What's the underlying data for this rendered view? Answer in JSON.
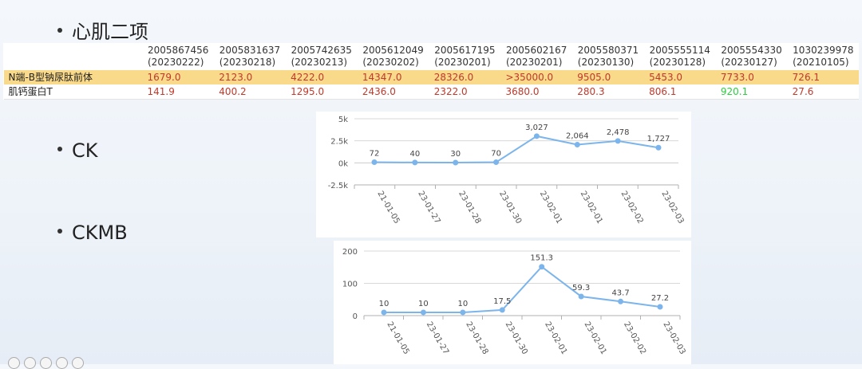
{
  "bullets": {
    "heart": "心肌二项",
    "ck": "CK",
    "ckmb": "CKMB"
  },
  "table": {
    "headers": [
      {
        "id": "2005867456",
        "date": "(20230222)"
      },
      {
        "id": "2005831637",
        "date": "(20230218)"
      },
      {
        "id": "2005742635",
        "date": "(20230213)"
      },
      {
        "id": "2005612049",
        "date": "(20230202)"
      },
      {
        "id": "2005617195",
        "date": "(20230201)"
      },
      {
        "id": "2005602167",
        "date": "(20230201)"
      },
      {
        "id": "2005580371",
        "date": "(20230130)"
      },
      {
        "id": "2005555114",
        "date": "(20230128)"
      },
      {
        "id": "2005554330",
        "date": "(20230127)"
      },
      {
        "id": "1030239978",
        "date": "(20210105)"
      }
    ],
    "rows": [
      {
        "label": "N端-B型钠尿肽前体",
        "values": [
          "1679.0",
          "2123.0",
          "4222.0",
          "14347.0",
          "28326.0",
          ">35000.0",
          "9505.0",
          "5453.0",
          "7733.0",
          "726.1"
        ],
        "colors": [
          "red",
          "red",
          "red",
          "red",
          "red",
          "red",
          "red",
          "red",
          "red",
          "red"
        ]
      },
      {
        "label": "肌钙蛋白T",
        "values": [
          "141.9",
          "400.2",
          "1295.0",
          "2436.0",
          "2322.0",
          "3680.0",
          "280.3",
          "806.1",
          "920.1",
          "27.6"
        ],
        "colors": [
          "red",
          "red",
          "red",
          "red",
          "red",
          "red",
          "red",
          "red",
          "green",
          "red"
        ]
      }
    ],
    "highlight_color": "#f9d98a"
  },
  "chart_data": [
    {
      "type": "line",
      "title": "",
      "categories": [
        "21-01-05",
        "23-01-27",
        "23-01-28",
        "23-01-30",
        "23-02-01",
        "23-02-01",
        "23-02-02",
        "23-02-03"
      ],
      "category_ticks": [
        "21-01-05",
        "23-01-27",
        "23-01-28",
        "23-01-30",
        "23-02-01",
        "23-02-01",
        "23-02-02",
        "23-02-03"
      ],
      "values": [
        72,
        40,
        30,
        70,
        3027,
        2064,
        2478,
        1727
      ],
      "data_labels": [
        "72",
        "40",
        "30",
        "70",
        "3,027",
        "2,064",
        "2,478",
        "1,727"
      ],
      "yticks": [
        5000,
        2500,
        0,
        -2500
      ],
      "ytick_labels": [
        "5k",
        "2.5k",
        "0k",
        "-2.5k"
      ],
      "ylim": [
        -2500,
        5000
      ],
      "grid": true,
      "color": "#7cb5ec"
    },
    {
      "type": "line",
      "title": "",
      "categories": [
        "21-01-05",
        "23-01-27",
        "23-01-28",
        "23-01-30",
        "23-02-01",
        "23-02-01",
        "23-02-02",
        "23-02-03"
      ],
      "values": [
        10,
        10,
        10,
        17.5,
        151.3,
        59.3,
        43.7,
        27.2
      ],
      "data_labels": [
        "10",
        "10",
        "10",
        "17.5",
        "151.3",
        "59.3",
        "43.7",
        "27.2"
      ],
      "yticks": [
        200,
        100,
        0
      ],
      "ytick_labels": [
        "200",
        "100",
        "0"
      ],
      "ylim": [
        0,
        200
      ],
      "grid": true,
      "color": "#7cb5ec"
    }
  ]
}
